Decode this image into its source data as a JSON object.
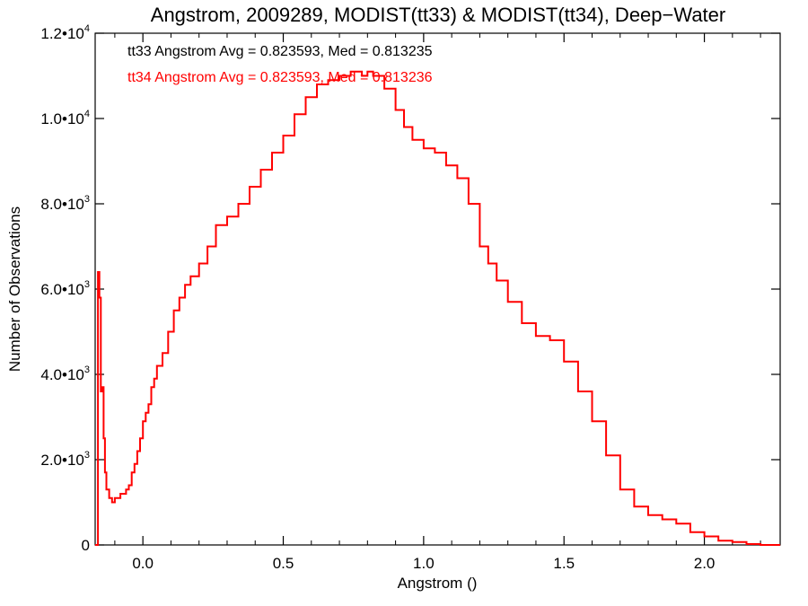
{
  "chart_data": {
    "type": "line",
    "title": "Angstrom, 2009289, MODIST(tt33) & MODIST(tt34), Deep−Water",
    "xlabel": "Angstrom ()",
    "ylabel": "Number of Observations",
    "xlim": [
      -0.17,
      2.27
    ],
    "ylim": [
      0,
      12000
    ],
    "x_ticks": [
      {
        "value": 0.0,
        "label": "0.0"
      },
      {
        "value": 0.5,
        "label": "0.5"
      },
      {
        "value": 1.0,
        "label": "1.0"
      },
      {
        "value": 1.5,
        "label": "1.5"
      },
      {
        "value": 2.0,
        "label": "2.0"
      }
    ],
    "y_ticks": [
      {
        "value": 0,
        "mant": "0",
        "exp": ""
      },
      {
        "value": 2000,
        "mant": "2.0•10",
        "exp": "3"
      },
      {
        "value": 4000,
        "mant": "4.0•10",
        "exp": "3"
      },
      {
        "value": 6000,
        "mant": "6.0•10",
        "exp": "3"
      },
      {
        "value": 8000,
        "mant": "8.0•10",
        "exp": "3"
      },
      {
        "value": 10000,
        "mant": "1.0•10",
        "exp": "4"
      },
      {
        "value": 12000,
        "mant": "1.2•10",
        "exp": "4"
      }
    ],
    "annotations": [
      {
        "text": "tt33 Angstrom Avg = 0.823593, Med = 0.813235",
        "color": "#000000"
      },
      {
        "text": "tt34 Angstrom Avg = 0.823593, Med = 0.813236",
        "color": "#ff0000"
      }
    ],
    "series": [
      {
        "color": "#ff0000",
        "step": true,
        "x": [
          -0.17,
          -0.16,
          -0.155,
          -0.15,
          -0.145,
          -0.14,
          -0.135,
          -0.13,
          -0.12,
          -0.11,
          -0.1,
          -0.09,
          -0.08,
          -0.07,
          -0.06,
          -0.05,
          -0.04,
          -0.03,
          -0.02,
          -0.01,
          0.0,
          0.01,
          0.02,
          0.03,
          0.04,
          0.05,
          0.07,
          0.09,
          0.11,
          0.13,
          0.15,
          0.17,
          0.2,
          0.23,
          0.26,
          0.3,
          0.34,
          0.38,
          0.42,
          0.46,
          0.5,
          0.54,
          0.58,
          0.62,
          0.66,
          0.7,
          0.74,
          0.78,
          0.8,
          0.82,
          0.86,
          0.9,
          0.93,
          0.96,
          1.0,
          1.04,
          1.08,
          1.12,
          1.16,
          1.2,
          1.23,
          1.26,
          1.3,
          1.35,
          1.4,
          1.45,
          1.5,
          1.55,
          1.6,
          1.65,
          1.7,
          1.75,
          1.8,
          1.85,
          1.9,
          1.95,
          2.0,
          2.05,
          2.1,
          2.15,
          2.2,
          2.27
        ],
        "y": [
          0,
          6400,
          5800,
          3600,
          3700,
          2500,
          1700,
          1300,
          1100,
          1000,
          1100,
          1100,
          1200,
          1200,
          1300,
          1400,
          1700,
          1900,
          2200,
          2500,
          2900,
          3100,
          3300,
          3700,
          3900,
          4200,
          4500,
          5000,
          5500,
          5800,
          6100,
          6300,
          6600,
          7000,
          7500,
          7700,
          8000,
          8400,
          8800,
          9200,
          9600,
          10100,
          10500,
          10800,
          10900,
          11000,
          11100,
          11000,
          11100,
          11000,
          10700,
          10200,
          9800,
          9500,
          9300,
          9200,
          8900,
          8600,
          8000,
          7000,
          6600,
          6200,
          5700,
          5200,
          4900,
          4800,
          4300,
          3600,
          2900,
          2100,
          1300,
          900,
          700,
          600,
          500,
          300,
          200,
          100,
          70,
          20,
          0,
          0
        ]
      }
    ]
  }
}
